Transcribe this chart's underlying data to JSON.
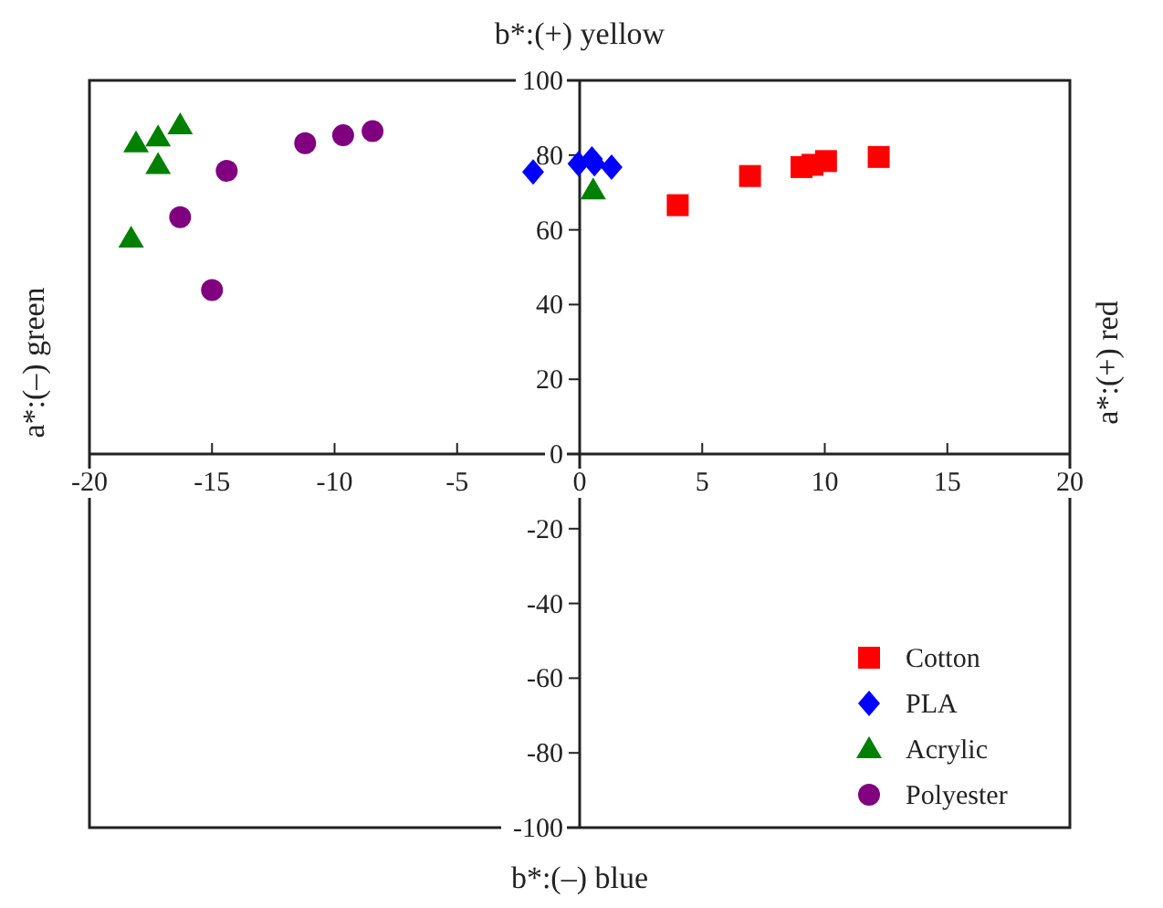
{
  "chart_data": {
    "type": "scatter",
    "title": "b*:(+) yellow",
    "xlabel": "b*:(–) blue",
    "ylabel": "a*:(–) green",
    "y2label": "a*:(+) red",
    "xlim": [
      -20,
      20
    ],
    "xticks": [
      -20,
      -15,
      -10,
      -5,
      0,
      5,
      10,
      15,
      20
    ],
    "ylim": [
      -100,
      100
    ],
    "yticks": [
      -100,
      -80,
      -60,
      -40,
      -20,
      0,
      20,
      40,
      60,
      80,
      100
    ],
    "grid": false,
    "legend": "bottom right",
    "series": [
      {
        "name": "Cotton",
        "color": "#ff0000",
        "marker": "square",
        "x": [
          4.0,
          6.95,
          9.05,
          9.5,
          10.05,
          12.2
        ],
        "values": [
          66.6,
          74.4,
          76.8,
          77.4,
          78.4,
          79.5
        ]
      },
      {
        "name": "PLA",
        "color": "#0000ff",
        "marker": "diamond",
        "x": [
          -1.9,
          -0.05,
          0.5,
          0.6,
          1.3
        ],
        "values": [
          75.5,
          77.7,
          79,
          77.7,
          76.8
        ]
      },
      {
        "name": "Acrylic",
        "color": "#008000",
        "marker": "triangle",
        "x": [
          -18.1,
          -17.2,
          -16.3,
          -17.2,
          -18.3,
          0.55
        ],
        "values": [
          83.2,
          84.8,
          88,
          77.4,
          57.7,
          70.6
        ]
      },
      {
        "name": "Polyester",
        "color": "#800080",
        "marker": "circle",
        "x": [
          -14.4,
          -16.3,
          -15.0,
          -11.2,
          -9.65,
          -8.45
        ],
        "values": [
          75.8,
          63.4,
          43.9,
          83.2,
          85.3,
          86.4
        ]
      }
    ]
  }
}
